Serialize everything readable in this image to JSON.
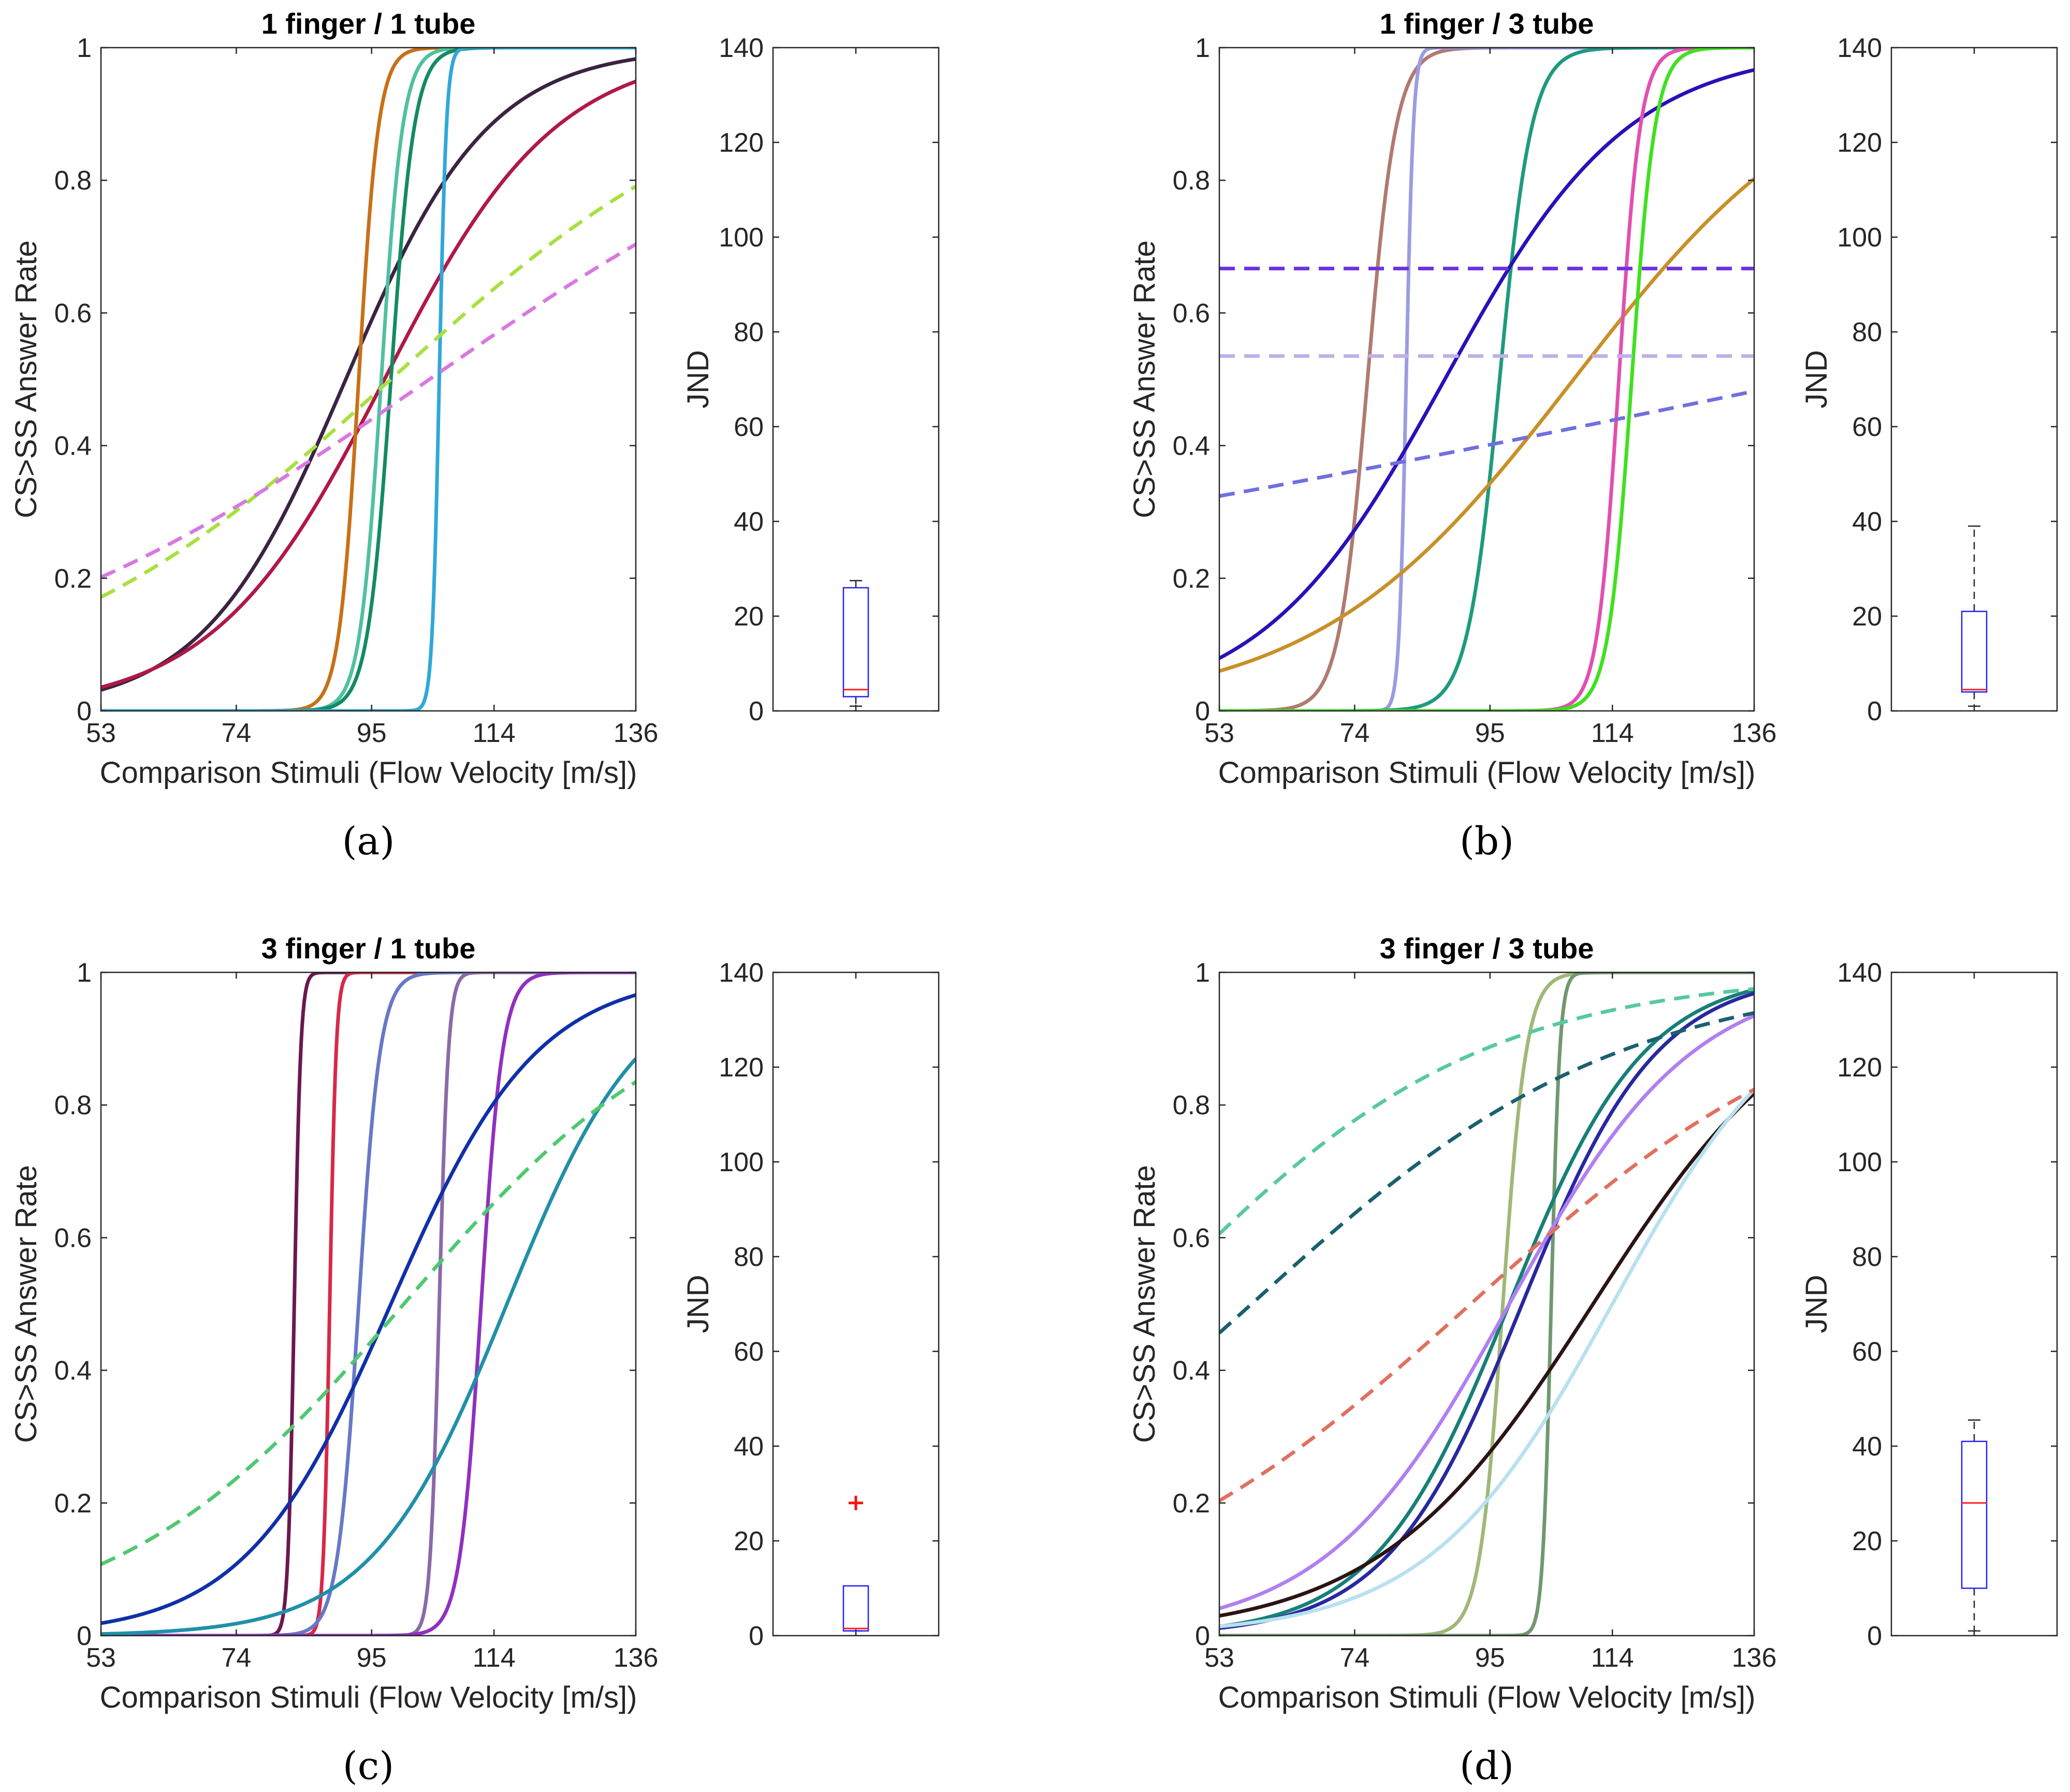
{
  "chart_data": [
    {
      "type": "line",
      "panel_label": "(a)",
      "title": "1 finger / 1 tube",
      "xlabel": "Comparison Stimuli (Flow Velocity [m/s])",
      "ylabel": "CS>SS Answer Rate",
      "xlim": [
        53,
        136
      ],
      "ylim": [
        0,
        1
      ],
      "xticks": [
        "53",
        "74",
        "95",
        "114",
        "136"
      ],
      "yticks": [
        "0",
        "0.2",
        "0.4",
        "0.6",
        "0.8",
        "1"
      ],
      "series": [
        {
          "color": "#3a2442",
          "dashed": false,
          "midpoint": 91,
          "slope": 0.09
        },
        {
          "color": "#b01848",
          "dashed": false,
          "midpoint": 97,
          "slope": 0.075
        },
        {
          "color": "#c87018",
          "dashed": false,
          "midpoint": 93,
          "slope": 0.65
        },
        {
          "color": "#50c0a0",
          "dashed": false,
          "midpoint": 96.5,
          "slope": 0.6
        },
        {
          "color": "#138b63",
          "dashed": false,
          "midpoint": 98,
          "slope": 0.55
        },
        {
          "color": "#30a8d8",
          "dashed": false,
          "midpoint": 105.5,
          "slope": 1.8
        },
        {
          "color": "#a8e040",
          "dashed": true,
          "midpoint": 98,
          "slope": 0.035
        },
        {
          "color": "#d878e0",
          "dashed": true,
          "midpoint": 104,
          "slope": 0.027
        }
      ],
      "boxplot": {
        "ylabel": "JND",
        "ylim": [
          0,
          140
        ],
        "yticks": [
          "0",
          "20",
          "40",
          "60",
          "80",
          "100",
          "120",
          "140"
        ],
        "whisker_low": 1,
        "q1": 3,
        "median": 4.5,
        "q3": 26,
        "whisker_high": 27.5,
        "outliers": []
      }
    },
    {
      "type": "line",
      "panel_label": "(b)",
      "title": "1 finger / 3 tube",
      "xlabel": "Comparison Stimuli (Flow Velocity [m/s])",
      "ylabel": "CS>SS Answer Rate",
      "xlim": [
        53,
        136
      ],
      "ylim": [
        0,
        1
      ],
      "xticks": [
        "53",
        "74",
        "95",
        "114",
        "136"
      ],
      "yticks": [
        "0",
        "0.2",
        "0.4",
        "0.6",
        "0.8",
        "1"
      ],
      "series": [
        {
          "color": "#b07a70",
          "dashed": false,
          "midpoint": 76,
          "slope": 0.45
        },
        {
          "color": "#9c9ce0",
          "dashed": false,
          "midpoint": 82,
          "slope": 1.8
        },
        {
          "color": "#1e9a80",
          "dashed": false,
          "midpoint": 96.5,
          "slope": 0.4
        },
        {
          "color": "#2a10b8",
          "dashed": false,
          "midpoint": 88,
          "slope": 0.07
        },
        {
          "color": "#c89028",
          "dashed": false,
          "midpoint": 108,
          "slope": 0.05
        },
        {
          "color": "#e050b0",
          "dashed": false,
          "midpoint": 115,
          "slope": 0.6
        },
        {
          "color": "#40e020",
          "dashed": false,
          "midpoint": 117,
          "slope": 0.55
        },
        {
          "color": "#7030e0",
          "dashed": true,
          "midpoint": 0,
          "slope": 0,
          "constant": 0.667
        },
        {
          "color": "#c0b0e8",
          "dashed": true,
          "midpoint": 0,
          "slope": 0,
          "constant": 0.535
        },
        {
          "color": "#7070e0",
          "dashed": true,
          "midpoint": 145,
          "slope": 0.008
        }
      ],
      "boxplot": {
        "ylabel": "JND",
        "ylim": [
          0,
          140
        ],
        "yticks": [
          "0",
          "20",
          "40",
          "60",
          "80",
          "100",
          "120",
          "140"
        ],
        "whisker_low": 1,
        "q1": 4,
        "median": 4.5,
        "q3": 21,
        "whisker_high": 39,
        "outliers": []
      }
    },
    {
      "type": "line",
      "panel_label": "(c)",
      "title": "3 finger / 1 tube",
      "xlabel": "Comparison Stimuli (Flow Velocity [m/s])",
      "ylabel": "CS>SS Answer Rate",
      "xlim": [
        53,
        136
      ],
      "ylim": [
        0,
        1
      ],
      "xticks": [
        "53",
        "74",
        "95",
        "114",
        "136"
      ],
      "yticks": [
        "0",
        "0.2",
        "0.4",
        "0.6",
        "0.8",
        "1"
      ],
      "series": [
        {
          "color": "#6a1850",
          "dashed": false,
          "midpoint": 83,
          "slope": 2.0
        },
        {
          "color": "#d82848",
          "dashed": false,
          "midpoint": 88.5,
          "slope": 2.0
        },
        {
          "color": "#6878c8",
          "dashed": false,
          "midpoint": 93,
          "slope": 0.6
        },
        {
          "color": "#8a6aa8",
          "dashed": false,
          "midpoint": 105.5,
          "slope": 1.4
        },
        {
          "color": "#9030c0",
          "dashed": false,
          "midpoint": 112,
          "slope": 0.6
        },
        {
          "color": "#1030a8",
          "dashed": false,
          "midpoint": 98,
          "slope": 0.088
        },
        {
          "color": "#2090a8",
          "dashed": false,
          "midpoint": 116,
          "slope": 0.095
        },
        {
          "color": "#50c870",
          "dashed": true,
          "midpoint": 100,
          "slope": 0.045
        }
      ],
      "boxplot": {
        "ylabel": "JND",
        "ylim": [
          0,
          140
        ],
        "yticks": [
          "0",
          "20",
          "40",
          "60",
          "80",
          "100",
          "120",
          "140"
        ],
        "whisker_low": 1,
        "q1": 1,
        "median": 1.5,
        "q3": 10.5,
        "whisker_high": 10.5,
        "outliers": [
          28
        ]
      }
    },
    {
      "type": "line",
      "panel_label": "(d)",
      "title": "3 finger / 3 tube",
      "xlabel": "Comparison Stimuli (Flow Velocity [m/s])",
      "ylabel": "CS>SS Answer Rate",
      "xlim": [
        53,
        136
      ],
      "ylim": [
        0,
        1
      ],
      "xticks": [
        "53",
        "74",
        "95",
        "114",
        "136"
      ],
      "yticks": [
        "0",
        "0.2",
        "0.4",
        "0.6",
        "0.8",
        "1"
      ],
      "series": [
        {
          "color": "#a0b878",
          "dashed": false,
          "midpoint": 97,
          "slope": 0.55
        },
        {
          "color": "#709870",
          "dashed": false,
          "midpoint": 104.5,
          "slope": 1.5
        },
        {
          "color": "#168078",
          "dashed": false,
          "midpoint": 98,
          "slope": 0.095
        },
        {
          "color": "#2828a0",
          "dashed": false,
          "midpoint": 100,
          "slope": 0.095
        },
        {
          "color": "#b080f0",
          "dashed": false,
          "midpoint": 98,
          "slope": 0.07
        },
        {
          "color": "#2c1414",
          "dashed": false,
          "midpoint": 111,
          "slope": 0.06
        },
        {
          "color": "#b8e0f0",
          "dashed": false,
          "midpoint": 114,
          "slope": 0.07
        },
        {
          "color": "#58c8a0",
          "dashed": true,
          "midpoint": 42,
          "slope": 0.039
        },
        {
          "color": "#1a6070",
          "dashed": true,
          "midpoint": 58,
          "slope": 0.035
        },
        {
          "color": "#e07060",
          "dashed": true,
          "midpoint": 92,
          "slope": 0.035
        }
      ],
      "boxplot": {
        "ylabel": "JND",
        "ylim": [
          0,
          140
        ],
        "yticks": [
          "0",
          "20",
          "40",
          "60",
          "80",
          "100",
          "120",
          "140"
        ],
        "whisker_low": 1,
        "q1": 10,
        "median": 28,
        "q3": 41,
        "whisker_high": 45.5,
        "outliers": []
      }
    }
  ]
}
